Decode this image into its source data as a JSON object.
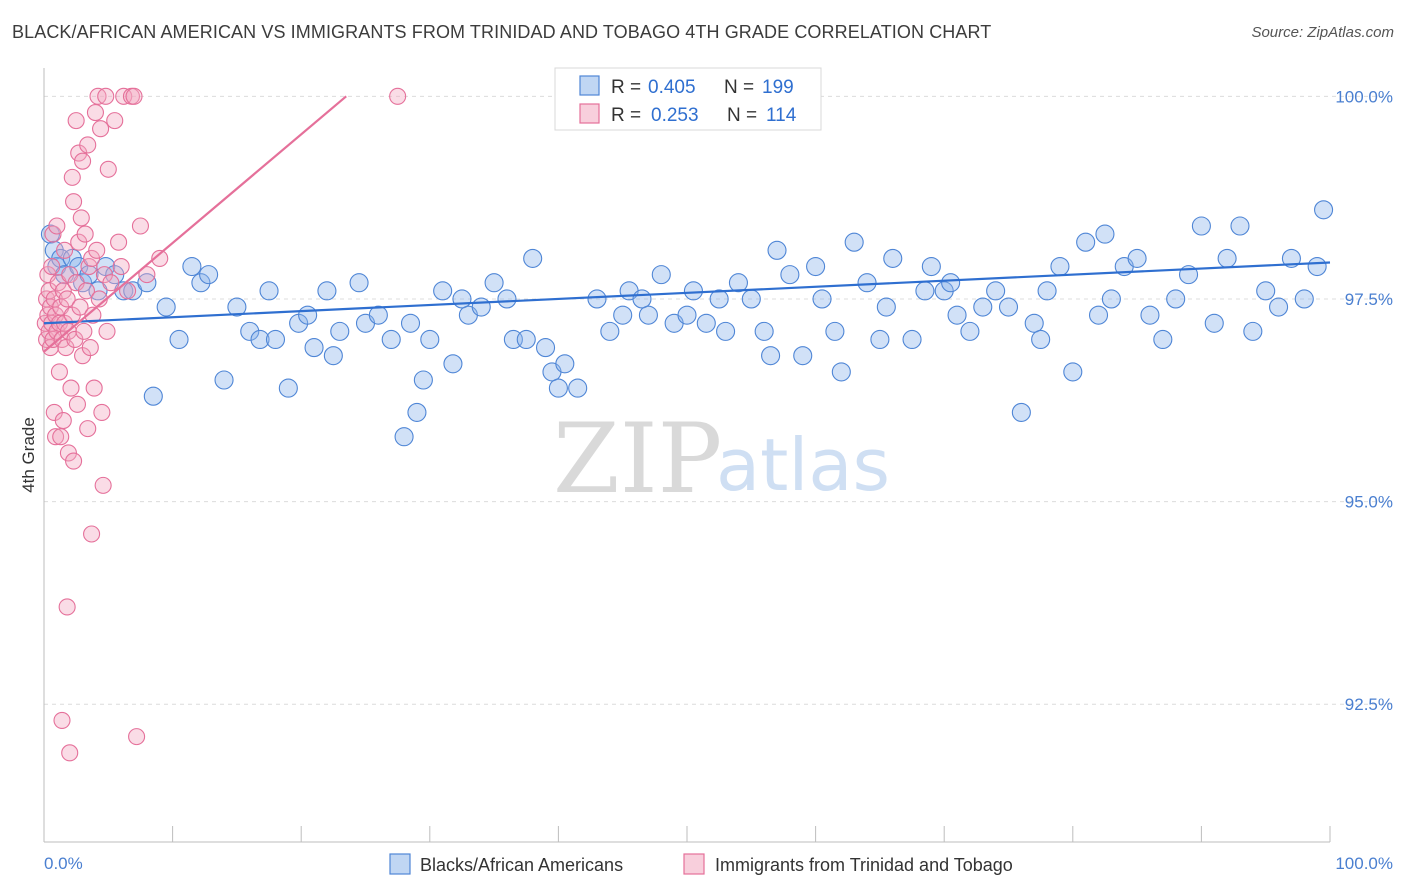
{
  "title": "BLACK/AFRICAN AMERICAN VS IMMIGRANTS FROM TRINIDAD AND TOBAGO 4TH GRADE CORRELATION CHART",
  "source": "Source: ZipAtlas.com",
  "watermark": {
    "zip": "ZIP",
    "atlas": "atlas"
  },
  "legend_box": {
    "rows": [
      {
        "r_label": "R =",
        "r_value": "0.405",
        "n_label": "N =",
        "n_value": "199",
        "color": "#8db5ea"
      },
      {
        "r_label": "R =",
        "r_value": "0.253",
        "n_label": "N =",
        "n_value": "114",
        "color": "#f3a7c0"
      }
    ]
  },
  "chart_data": {
    "type": "scatter",
    "title": "BLACK/AFRICAN AMERICAN VS IMMIGRANTS FROM TRINIDAD AND TOBAGO 4TH GRADE CORRELATION CHART",
    "xlabel": "",
    "ylabel": "4th Grade",
    "xlim": [
      0,
      100
    ],
    "ylim": [
      90.8,
      100.3
    ],
    "x_tick_labels": [
      "0.0%",
      "100.0%"
    ],
    "y_ticks": [
      92.5,
      95.0,
      97.5,
      100.0
    ],
    "y_tick_labels": [
      "92.5%",
      "95.0%",
      "97.5%",
      "100.0%"
    ],
    "grid": "horizontal dashed",
    "legend_position": "bottom",
    "series": [
      {
        "name": "Blacks/African Americans",
        "color": "#8db5ea",
        "edge": "#4f86d6",
        "trend": {
          "x": [
            0,
            100
          ],
          "y": [
            97.2,
            97.95
          ]
        },
        "points": [
          [
            0.5,
            98.3
          ],
          [
            0.8,
            98.1
          ],
          [
            1.0,
            97.9
          ],
          [
            1.3,
            98.0
          ],
          [
            1.6,
            97.8
          ],
          [
            2.2,
            98.0
          ],
          [
            2.7,
            97.9
          ],
          [
            3.0,
            97.7
          ],
          [
            3.5,
            97.8
          ],
          [
            4.2,
            97.6
          ],
          [
            4.8,
            97.9
          ],
          [
            5.5,
            97.8
          ],
          [
            6.2,
            97.6
          ],
          [
            6.9,
            97.6
          ],
          [
            8.0,
            97.7
          ],
          [
            8.5,
            96.3
          ],
          [
            9.5,
            97.4
          ],
          [
            10.5,
            97.0
          ],
          [
            11.5,
            97.9
          ],
          [
            12.2,
            97.7
          ],
          [
            12.8,
            97.8
          ],
          [
            14.0,
            96.5
          ],
          [
            15.0,
            97.4
          ],
          [
            16.0,
            97.1
          ],
          [
            16.8,
            97.0
          ],
          [
            17.5,
            97.6
          ],
          [
            18.0,
            97.0
          ],
          [
            19.0,
            96.4
          ],
          [
            19.8,
            97.2
          ],
          [
            20.5,
            97.3
          ],
          [
            21.0,
            96.9
          ],
          [
            22.0,
            97.6
          ],
          [
            22.5,
            96.8
          ],
          [
            23.0,
            97.1
          ],
          [
            24.5,
            97.7
          ],
          [
            25.0,
            97.2
          ],
          [
            26.0,
            97.3
          ],
          [
            27.0,
            97.0
          ],
          [
            28.0,
            95.8
          ],
          [
            28.5,
            97.2
          ],
          [
            29.0,
            96.1
          ],
          [
            29.5,
            96.5
          ],
          [
            30.0,
            97.0
          ],
          [
            31.0,
            97.6
          ],
          [
            31.8,
            96.7
          ],
          [
            32.5,
            97.5
          ],
          [
            33.0,
            97.3
          ],
          [
            34.0,
            97.4
          ],
          [
            35.0,
            97.7
          ],
          [
            36.0,
            97.5
          ],
          [
            36.5,
            97.0
          ],
          [
            37.5,
            97.0
          ],
          [
            38.0,
            98.0
          ],
          [
            39.0,
            96.9
          ],
          [
            39.5,
            96.6
          ],
          [
            40.0,
            96.4
          ],
          [
            40.5,
            96.7
          ],
          [
            41.5,
            96.4
          ],
          [
            43.0,
            97.5
          ],
          [
            44.0,
            97.1
          ],
          [
            45.0,
            97.3
          ],
          [
            45.5,
            97.6
          ],
          [
            46.5,
            97.5
          ],
          [
            47.0,
            97.3
          ],
          [
            48.0,
            97.8
          ],
          [
            49.0,
            97.2
          ],
          [
            50.0,
            97.3
          ],
          [
            50.5,
            97.6
          ],
          [
            51.5,
            97.2
          ],
          [
            52.5,
            97.5
          ],
          [
            53.0,
            97.1
          ],
          [
            54.0,
            97.7
          ],
          [
            55.0,
            97.5
          ],
          [
            56.0,
            97.1
          ],
          [
            56.5,
            96.8
          ],
          [
            57.0,
            98.1
          ],
          [
            58.0,
            97.8
          ],
          [
            59.0,
            96.8
          ],
          [
            60.0,
            97.9
          ],
          [
            60.5,
            97.5
          ],
          [
            61.5,
            97.1
          ],
          [
            62.0,
            96.6
          ],
          [
            63.0,
            98.2
          ],
          [
            64.0,
            97.7
          ],
          [
            65.0,
            97.0
          ],
          [
            65.5,
            97.4
          ],
          [
            66.0,
            98.0
          ],
          [
            67.5,
            97.0
          ],
          [
            68.5,
            97.6
          ],
          [
            69.0,
            97.9
          ],
          [
            70.0,
            97.6
          ],
          [
            70.5,
            97.7
          ],
          [
            71.0,
            97.3
          ],
          [
            72.0,
            97.1
          ],
          [
            73.0,
            97.4
          ],
          [
            74.0,
            97.6
          ],
          [
            75.0,
            97.4
          ],
          [
            76.0,
            96.1
          ],
          [
            77.0,
            97.2
          ],
          [
            77.5,
            97.0
          ],
          [
            78.0,
            97.6
          ],
          [
            79.0,
            97.9
          ],
          [
            80.0,
            96.6
          ],
          [
            81.0,
            98.2
          ],
          [
            82.0,
            97.3
          ],
          [
            82.5,
            98.3
          ],
          [
            83.0,
            97.5
          ],
          [
            84.0,
            97.9
          ],
          [
            85.0,
            98.0
          ],
          [
            86.0,
            97.3
          ],
          [
            87.0,
            97.0
          ],
          [
            88.0,
            97.5
          ],
          [
            89.0,
            97.8
          ],
          [
            90.0,
            98.4
          ],
          [
            91.0,
            97.2
          ],
          [
            92.0,
            98.0
          ],
          [
            93.0,
            98.4
          ],
          [
            94.0,
            97.1
          ],
          [
            95.0,
            97.6
          ],
          [
            96.0,
            97.4
          ],
          [
            97.0,
            98.0
          ],
          [
            98.0,
            97.5
          ],
          [
            99.0,
            97.9
          ],
          [
            99.5,
            98.6
          ]
        ]
      },
      {
        "name": "Immigrants from Trinidad and Tobago",
        "color": "#f3a7c0",
        "edge": "#e5709a",
        "trend": {
          "x": [
            0,
            23.5
          ],
          "y": [
            96.85,
            100.0
          ]
        },
        "points": [
          [
            0.1,
            97.2
          ],
          [
            0.2,
            97.5
          ],
          [
            0.2,
            97.0
          ],
          [
            0.3,
            97.3
          ],
          [
            0.3,
            97.8
          ],
          [
            0.4,
            97.1
          ],
          [
            0.4,
            97.6
          ],
          [
            0.5,
            96.9
          ],
          [
            0.5,
            97.4
          ],
          [
            0.6,
            97.2
          ],
          [
            0.6,
            97.9
          ],
          [
            0.7,
            97.0
          ],
          [
            0.7,
            98.3
          ],
          [
            0.8,
            97.5
          ],
          [
            0.8,
            96.1
          ],
          [
            0.9,
            97.3
          ],
          [
            0.9,
            95.8
          ],
          [
            1.0,
            97.1
          ],
          [
            1.0,
            98.4
          ],
          [
            1.1,
            97.7
          ],
          [
            1.2,
            97.2
          ],
          [
            1.2,
            96.6
          ],
          [
            1.3,
            97.4
          ],
          [
            1.3,
            95.8
          ],
          [
            1.4,
            97.0
          ],
          [
            1.4,
            92.3
          ],
          [
            1.5,
            97.6
          ],
          [
            1.5,
            96.0
          ],
          [
            1.6,
            97.2
          ],
          [
            1.6,
            98.1
          ],
          [
            1.7,
            96.9
          ],
          [
            1.8,
            97.5
          ],
          [
            1.8,
            93.7
          ],
          [
            1.9,
            97.1
          ],
          [
            1.9,
            95.6
          ],
          [
            2.0,
            97.8
          ],
          [
            2.0,
            91.9
          ],
          [
            2.1,
            96.4
          ],
          [
            2.2,
            97.3
          ],
          [
            2.2,
            99.0
          ],
          [
            2.3,
            98.7
          ],
          [
            2.3,
            95.5
          ],
          [
            2.4,
            97.0
          ],
          [
            2.5,
            99.7
          ],
          [
            2.5,
            97.7
          ],
          [
            2.6,
            96.2
          ],
          [
            2.7,
            98.2
          ],
          [
            2.7,
            99.3
          ],
          [
            2.8,
            97.4
          ],
          [
            2.9,
            98.5
          ],
          [
            3.0,
            99.2
          ],
          [
            3.0,
            96.8
          ],
          [
            3.1,
            97.1
          ],
          [
            3.2,
            98.3
          ],
          [
            3.3,
            97.6
          ],
          [
            3.4,
            99.4
          ],
          [
            3.4,
            95.9
          ],
          [
            3.5,
            97.9
          ],
          [
            3.6,
            96.9
          ],
          [
            3.7,
            98.0
          ],
          [
            3.7,
            94.6
          ],
          [
            3.8,
            97.3
          ],
          [
            3.9,
            96.4
          ],
          [
            4.0,
            99.8
          ],
          [
            4.1,
            98.1
          ],
          [
            4.2,
            100.0
          ],
          [
            4.3,
            97.5
          ],
          [
            4.4,
            99.6
          ],
          [
            4.5,
            96.1
          ],
          [
            4.6,
            95.2
          ],
          [
            4.7,
            97.8
          ],
          [
            4.8,
            100.0
          ],
          [
            4.9,
            97.1
          ],
          [
            5.0,
            99.1
          ],
          [
            5.2,
            97.7
          ],
          [
            5.5,
            99.7
          ],
          [
            5.8,
            98.2
          ],
          [
            6.0,
            97.9
          ],
          [
            6.2,
            100.0
          ],
          [
            6.5,
            97.6
          ],
          [
            6.8,
            100.0
          ],
          [
            7.0,
            100.0
          ],
          [
            7.2,
            92.1
          ],
          [
            7.5,
            98.4
          ],
          [
            8.0,
            97.8
          ],
          [
            9.0,
            98.0
          ],
          [
            27.5,
            100.0
          ]
        ]
      }
    ]
  }
}
